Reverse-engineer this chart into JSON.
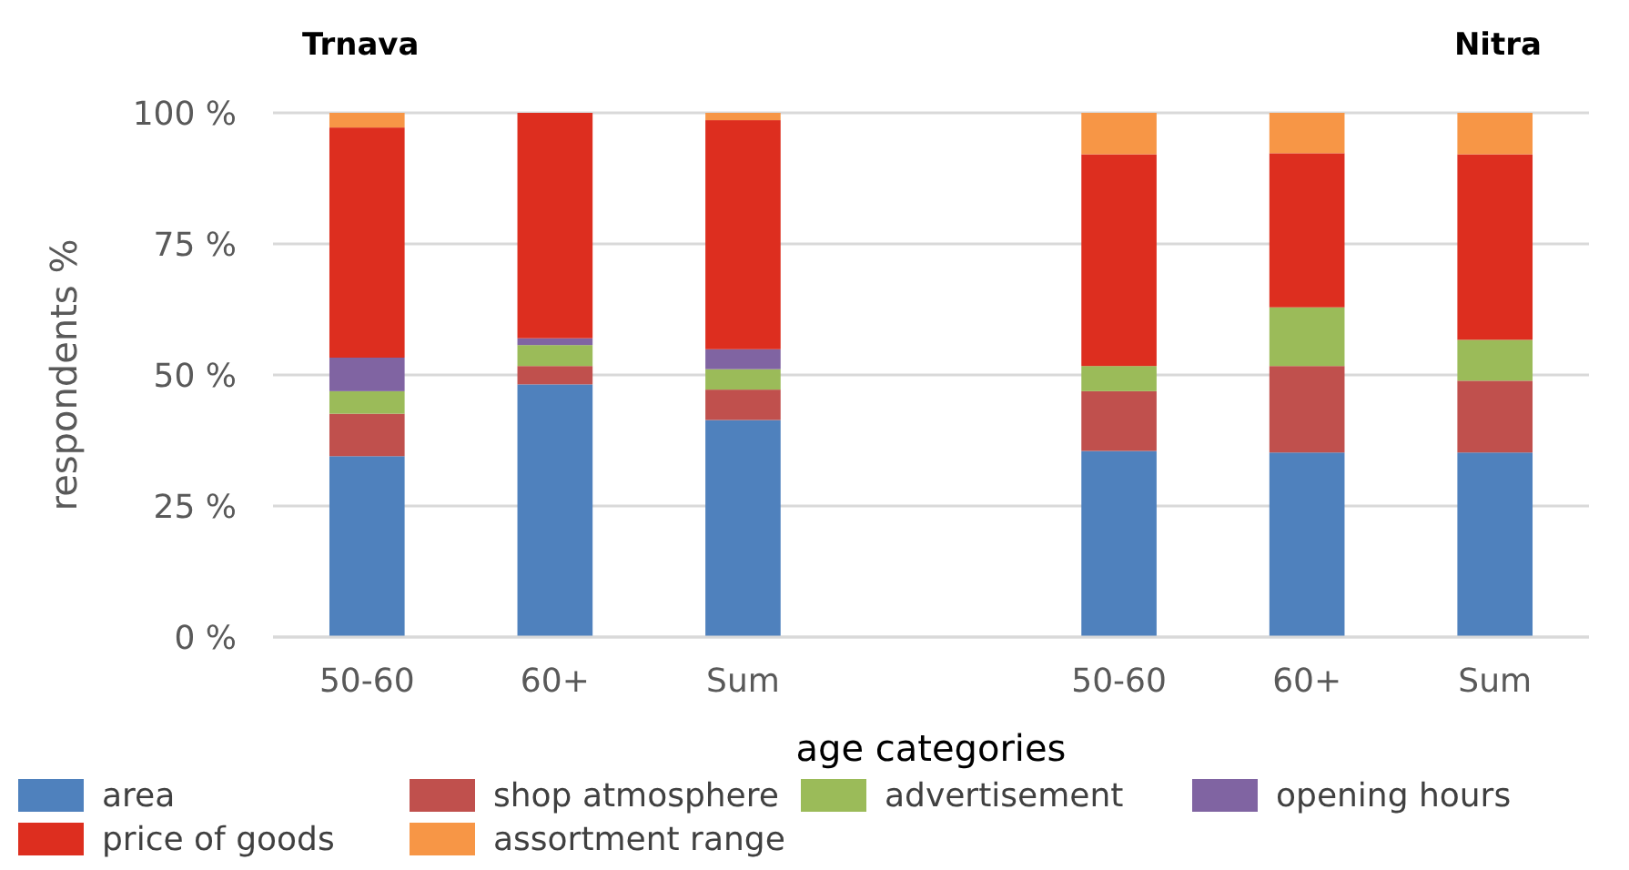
{
  "chart_data": {
    "type": "bar",
    "stacked": true,
    "xlabel": "age categories",
    "ylabel": "respondents  %",
    "annotations": [
      "Trnava",
      "Nitra"
    ],
    "categories": [
      "50-60",
      "60+",
      "Sum",
      null,
      "50-60",
      "60+",
      "Sum"
    ],
    "series": [
      {
        "name": "area",
        "color": "#4f81bd",
        "values": [
          34.5,
          48.2,
          41.4,
          null,
          35.5,
          35.2,
          35.2
        ]
      },
      {
        "name": "shop atmosphere",
        "color": "#c0504d",
        "values": [
          8.1,
          3.5,
          5.8,
          null,
          11.4,
          16.5,
          13.7
        ]
      },
      {
        "name": "advertisement",
        "color": "#9bbb59",
        "values": [
          4.3,
          4.0,
          3.9,
          null,
          4.8,
          11.2,
          7.8
        ]
      },
      {
        "name": "opening hours",
        "color": "#8064a2",
        "values": [
          6.4,
          1.3,
          3.8,
          null,
          0,
          0,
          0
        ]
      },
      {
        "name": "price of goods",
        "color": "#dd2e1f",
        "values": [
          43.9,
          43.0,
          43.7,
          null,
          40.4,
          29.4,
          35.4
        ]
      },
      {
        "name": "assortment range",
        "color": "#f79646",
        "values": [
          2.8,
          0,
          1.4,
          null,
          7.9,
          7.7,
          7.9
        ]
      }
    ],
    "ylim": [
      0,
      100
    ],
    "yticks": [
      {
        "value": 0,
        "label": "0 %"
      },
      {
        "value": 25,
        "label": "25 %"
      },
      {
        "value": 50,
        "label": "50 %"
      },
      {
        "value": 75,
        "label": "75 %"
      },
      {
        "value": 100,
        "label": "100 %"
      }
    ],
    "grid": "y",
    "legend": "bottom"
  }
}
